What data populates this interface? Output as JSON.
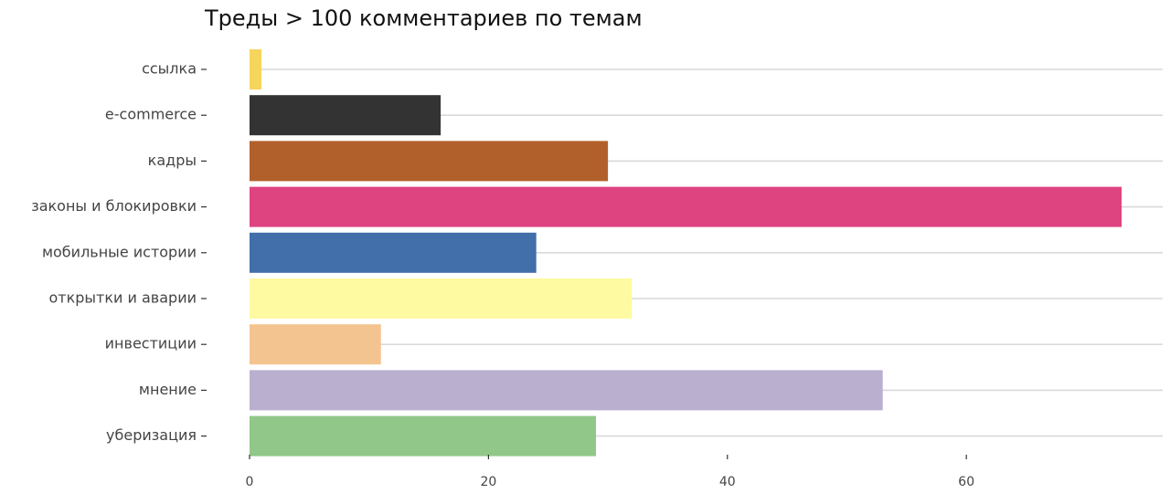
{
  "chart_data": {
    "type": "bar",
    "orientation": "horizontal",
    "title": "Треды > 100 комментариев по темам",
    "xlabel": "",
    "ylabel": "",
    "categories": [
      "ссылка",
      "e-commerce",
      "кадры",
      "законы и блокировки",
      "мобильные истории",
      "открытки и аварии",
      "инвестиции",
      "мнение",
      "уберизация"
    ],
    "values": [
      1,
      16,
      30,
      73,
      24,
      32,
      11,
      53,
      29
    ],
    "colors": [
      "#F6D55C",
      "#333333",
      "#B2602B",
      "#DE4480",
      "#426EAA",
      "#FEFAA1",
      "#F4C490",
      "#BBAFD0",
      "#91C788"
    ],
    "xlim": [
      0,
      75
    ],
    "x_ticks": [
      0,
      20,
      40,
      60
    ],
    "grid": "horizontal-major",
    "legend": "none"
  }
}
